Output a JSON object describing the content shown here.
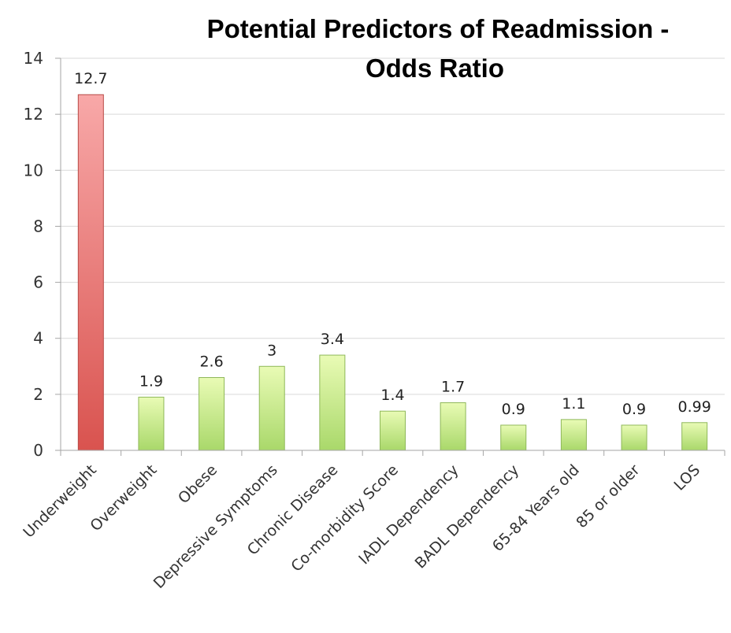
{
  "chart_data": {
    "type": "bar",
    "title": "Potential Predictors of Readmission - Odds Ratio",
    "title_lines": [
      "Potential Predictors of Readmission -",
      "Odds Ratio"
    ],
    "categories": [
      "Underweight",
      "Overweight",
      "Obese",
      "Depressive Symptoms",
      "Chronic Disease",
      "Co-morbidity Score",
      "IADL Dependency",
      "BADL Dependency",
      "65-84 Years old",
      "85 or older",
      "LOS"
    ],
    "values": [
      12.7,
      1.9,
      2.6,
      3,
      3.4,
      1.4,
      1.7,
      0.9,
      1.1,
      0.9,
      0.99
    ],
    "data_labels": [
      "12.7",
      "1.9",
      "2.6",
      "3",
      "3.4",
      "1.4",
      "1.7",
      "0.9",
      "1.1",
      "0.9",
      "0.99"
    ],
    "highlight_index": 0,
    "colors": {
      "highlight_top": "#f8a8a8",
      "highlight_bottom": "#d9534f",
      "highlight_stroke": "#b84a46",
      "bar_top": "#e9fbb5",
      "bar_bottom": "#a9d86a",
      "bar_stroke": "#8fb85a",
      "grid": "#d9d9d9",
      "axis": "#a6a6a6"
    },
    "ylim": [
      0,
      14
    ],
    "yticks": [
      0,
      2,
      4,
      6,
      8,
      10,
      12,
      14
    ],
    "ytick_labels": [
      "0",
      "2",
      "4",
      "6",
      "8",
      "10",
      "12",
      "14"
    ],
    "xlabel": "",
    "ylabel": "",
    "grid": true,
    "legend": false
  }
}
